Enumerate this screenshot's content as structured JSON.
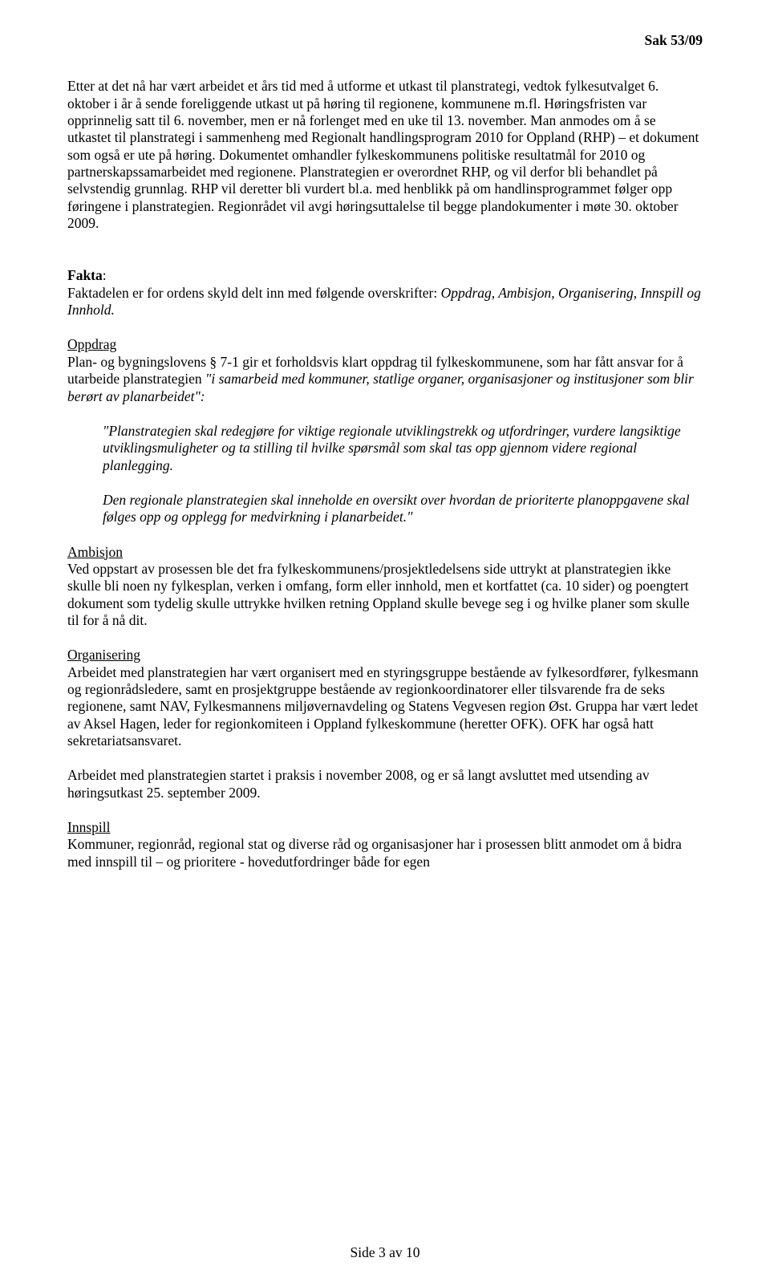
{
  "header": {
    "case_number": "Sak 53/09"
  },
  "p1": "Etter at det nå har vært arbeidet et års tid med å utforme et utkast til planstrategi, vedtok fylkesutvalget 6. oktober i år å sende foreliggende utkast ut på høring til regionene, kommunene m.fl. Høringsfristen var opprinnelig satt til 6. november, men er nå forlenget med en uke til 13. november. Man anmodes om å se utkastet til planstrategi i sammenheng med Regionalt handlingsprogram 2010 for Oppland (RHP) – et dokument som også er ute på høring. Dokumentet omhandler fylkeskommunens politiske resultatmål for 2010 og partnerskapssamarbeidet med regionene. Planstrategien er overordnet RHP, og vil derfor bli behandlet på selvstendig grunnlag. RHP vil deretter bli vurdert bl.a. med henblikk på om handlinsprogrammet følger opp føringene i planstrategien. Regionrådet vil avgi høringsuttalelse til begge plandokumenter i møte 30. oktober 2009.",
  "fakta_label": "Fakta",
  "fakta_body_a": "Faktadelen er for ordens skyld delt inn med følgende overskrifter: ",
  "fakta_body_b": "Oppdrag, Ambisjon, Organisering, Innspill og Innhold.",
  "oppdrag_label": "Oppdrag",
  "oppdrag_body_a": "Plan- og bygningslovens § 7-1 gir et forholdsvis klart oppdrag til fylkeskommunene, som har fått ansvar for å utarbeide planstrategien ",
  "oppdrag_body_b": "\"i samarbeid med kommuner, statlige organer, organisasjoner og institusjoner som blir berørt av planarbeidet\":",
  "quote1": "\"Planstrategien skal redegjøre for viktige regionale utviklingstrekk og utfordringer, vurdere langsiktige utviklingsmuligheter og ta stilling til hvilke spørsmål som skal tas opp gjennom videre regional planlegging.",
  "quote2": "Den regionale planstrategien skal inneholde en oversikt over hvordan de prioriterte planoppgavene skal følges opp og opplegg for medvirkning i planarbeidet.\"",
  "ambisjon_label": "Ambisjon",
  "ambisjon_body": "Ved oppstart av prosessen ble det fra fylkeskommunens/prosjektledelsens side uttrykt at planstrategien ikke skulle bli noen ny fylkesplan, verken i omfang, form eller innhold, men et kortfattet (ca. 10 sider) og poengtert dokument som tydelig skulle uttrykke hvilken retning Oppland skulle bevege seg i og hvilke planer som skulle til for å nå dit.",
  "organisering_label": "Organisering",
  "organisering_body": "Arbeidet med planstrategien har vært organisert med en styringsgruppe bestående av fylkesordfører, fylkesmann og regionrådsledere, samt en prosjektgruppe bestående av regionkoordinatorer eller tilsvarende fra de seks regionene, samt NAV, Fylkesmannens miljøvernavdeling og Statens Vegvesen region Øst. Gruppa har vært ledet av Aksel Hagen, leder for regionkomiteen i Oppland fylkeskommune (heretter OFK). OFK har også hatt sekretariatsansvaret.",
  "p_middle": "Arbeidet med planstrategien startet i praksis i november 2008, og er så langt avsluttet med utsending av høringsutkast 25. september 2009.",
  "innspill_label": "Innspill",
  "innspill_body": "Kommuner, regionråd, regional stat og diverse råd og organisasjoner har i prosessen blitt anmodet om å bidra med innspill til – og prioritere - hovedutfordringer både for egen",
  "footer": "Side 3 av 10"
}
